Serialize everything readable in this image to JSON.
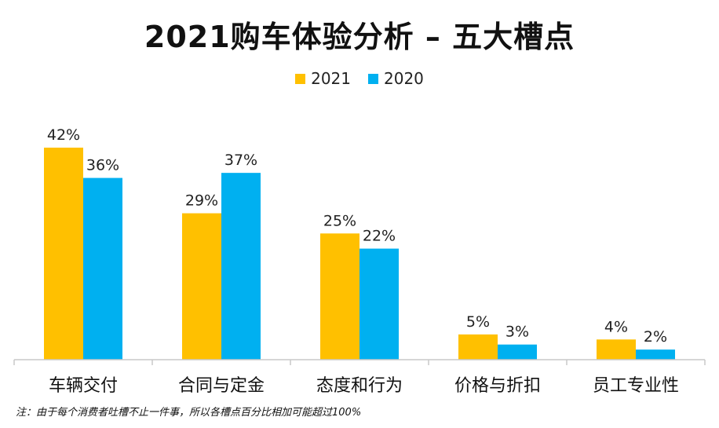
{
  "title": "2021购车体验分析 – 五大槽点",
  "note": "注：由于每个消费者吐槽不止一件事，所以各槽点百分比相加可能超过100%",
  "colors": {
    "series_2021": "#FFC000",
    "series_2020": "#00B0F0"
  },
  "chart_data": {
    "type": "bar",
    "categories": [
      "车辆交付",
      "合同与定金",
      "态度和行为",
      "价格与折扣",
      "员工专业性"
    ],
    "series": [
      {
        "name": "2021",
        "values": [
          42,
          29,
          25,
          5,
          4
        ],
        "labels": [
          "42%",
          "29%",
          "25%",
          "5%",
          "4%"
        ]
      },
      {
        "name": "2020",
        "values": [
          36,
          37,
          22,
          3,
          2
        ],
        "labels": [
          "36%",
          "37%",
          "22%",
          "3%",
          "2%"
        ]
      }
    ],
    "title": "2021购车体验分析 – 五大槽点",
    "xlabel": "",
    "ylabel": "",
    "ylim": [
      0,
      42
    ],
    "grid": false,
    "legend": "top-center"
  }
}
